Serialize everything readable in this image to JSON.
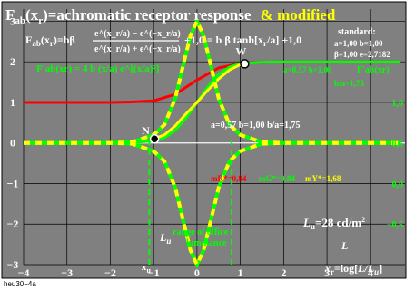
{
  "chart_data": {
    "type": "line",
    "title": "F",
    "title_sub": "ab",
    "title_arg": "(x",
    "title_arg_sub": "r",
    "title_rest": ")=achromatic receptor response",
    "title_highlight": "& modified",
    "formula_left": "F",
    "formula_left_sub": "ab",
    "formula_left_rest": "(x",
    "formula_left_rest_sub": "r",
    "formula_left_rest2": ")=bβ",
    "formula_numerator": "e^(x_r/a) − e^(−x_r/a)",
    "formula_denominator": "e^(x_r/a) + e^(−x_r/a)",
    "formula_right": "+1,0 = b β tanh[x",
    "formula_right_sub": "r",
    "formula_right_rest": "/a] +1,0",
    "formula_modified": "F'ab(xr) = 4 b (x/a) e^[(x/a)²]",
    "standard_title": "standard:",
    "standard_line1": "a=1,00 b=1,00",
    "standard_line2": "β=1,00 e=2,7182",
    "right_param_line1": "a=0,57 b=1,00",
    "right_param_label": "F'ab(xr)",
    "right_param_line2": "b/a=1,75",
    "green_curve_label": "a=0,57 b=1,00 b/a=1,75",
    "point_w": "W",
    "point_n": "N",
    "m_r_label": "mR*=0,84",
    "m_g_label": "mG*=0,84",
    "m_y_label": "mY*=1,68",
    "range_label_1": "range of office",
    "range_label_2": "luminance",
    "lu_symbol": "L",
    "lu_symbol_sub": "u",
    "lu_label": "L",
    "lu_sub": "u",
    "lu_value": "=28 cd/m",
    "lu_value_sup": "2",
    "l_axis_symbol": "L",
    "xu_label": "x",
    "xu_sub": "u",
    "x_axis_label": "x",
    "x_axis_sub": "r",
    "x_axis_rest": "=log[",
    "x_axis_italic": "L/L",
    "x_axis_italic_sub": "u",
    "x_axis_close": "]",
    "footer": "heu30−4a",
    "xlim": [
      -4,
      4.8
    ],
    "ylim": [
      -3,
      3.3
    ],
    "x_ticks": [
      "−4",
      "−3",
      "−2",
      "−1",
      "0",
      "1",
      "2",
      "3",
      "4"
    ],
    "y_ticks_left": [
      "3",
      "2",
      "1",
      "0",
      "−1",
      "−2",
      "−3"
    ],
    "y_ticks_right": [
      "1,0",
      "0,5",
      "0,0",
      "−0,5"
    ],
    "grid": true,
    "colors": {
      "background": "#808080",
      "frame": "#000000",
      "red_curve": "#ff0000",
      "green_curve": "#00ff00",
      "yellow_curve": "#ffff00",
      "title_text": "#ffffff",
      "highlight": "#ffff00"
    },
    "series": [
      {
        "name": "red",
        "x": [
          -4,
          -3,
          -2,
          -1.5,
          -1,
          -0.5,
          0,
          0.5,
          1,
          1.5,
          2,
          3,
          4.7
        ],
        "y": [
          1.0,
          1.0,
          1.0,
          1.01,
          1.04,
          1.2,
          1.55,
          1.85,
          1.96,
          1.99,
          2.0,
          2.0,
          2.0
        ]
      },
      {
        "name": "green",
        "x": [
          -4,
          -2,
          -1.5,
          -1,
          -0.75,
          -0.5,
          -0.25,
          0,
          0.25,
          0.5,
          0.75,
          1,
          1.5,
          2,
          3,
          4.7
        ],
        "y": [
          0.0,
          0.0,
          0.01,
          0.05,
          0.13,
          0.31,
          0.62,
          1.0,
          1.38,
          1.69,
          1.87,
          1.95,
          1.99,
          2.0,
          2.0,
          2.0
        ]
      },
      {
        "name": "yellow",
        "x": [
          -1.0,
          -0.75,
          -0.5,
          -0.25,
          0,
          0.25,
          0.5,
          0.75,
          1.0
        ],
        "y": [
          0.1,
          0.2,
          0.42,
          0.72,
          1.0,
          1.3,
          1.58,
          1.8,
          1.93
        ]
      },
      {
        "name": "modified-positive",
        "x": [
          -4,
          -2,
          -1.5,
          -1,
          -0.75,
          -0.5,
          -0.3,
          -0.15,
          0,
          0.15,
          0.3,
          0.5,
          0.75,
          1,
          1.5,
          2,
          3,
          4.7
        ],
        "y": [
          0.0,
          0.0,
          0.02,
          0.2,
          0.45,
          1.1,
          2.0,
          2.65,
          3.0,
          2.65,
          2.0,
          1.1,
          0.45,
          0.2,
          0.02,
          0.0,
          0.0,
          0.0
        ]
      },
      {
        "name": "modified-negative",
        "x": [
          -4,
          -2,
          -1.5,
          -1,
          -0.75,
          -0.5,
          -0.3,
          -0.15,
          0,
          0.15,
          0.3,
          0.5,
          0.75,
          1,
          1.5,
          2,
          3,
          4.7
        ],
        "y": [
          0.0,
          0.0,
          -0.02,
          -0.2,
          -0.45,
          -1.1,
          -2.0,
          -2.65,
          -3.0,
          -2.65,
          -2.0,
          -1.1,
          -0.45,
          -0.2,
          -0.02,
          0.0,
          0.0,
          0.0
        ]
      }
    ],
    "points": [
      {
        "name": "N",
        "x": -0.98,
        "y": 0.1
      },
      {
        "name": "W",
        "x": 1.1,
        "y": 1.95
      }
    ],
    "range_marker": {
      "x_start": -1.1,
      "x_end": 0.8
    }
  }
}
